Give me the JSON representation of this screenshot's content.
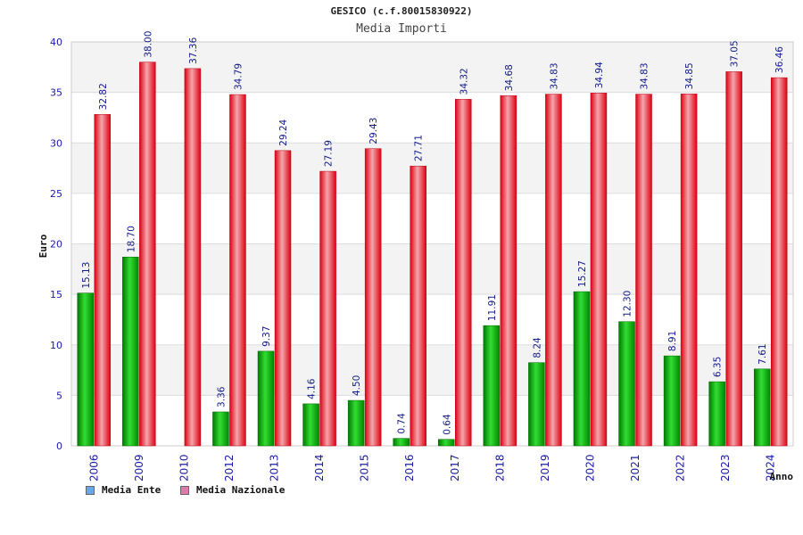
{
  "title": "GESICO (c.f.80015830922)",
  "subtitle": "Media Importi",
  "chart_data": {
    "type": "bar",
    "xlabel": "Anno",
    "ylabel": "Euro",
    "ylim": [
      0,
      40
    ],
    "yticks": [
      0,
      5,
      10,
      15,
      20,
      25,
      30,
      35,
      40
    ],
    "grid": true,
    "legend_position": "bottom-left",
    "categories": [
      "2006",
      "2009",
      "2010",
      "2012",
      "2013",
      "2014",
      "2015",
      "2016",
      "2017",
      "2018",
      "2019",
      "2020",
      "2021",
      "2022",
      "2023",
      "2024"
    ],
    "series": [
      {
        "name": "Media Ente",
        "color": "#00bb00",
        "legend_color": "#6aa7e6",
        "values": [
          15.13,
          18.7,
          null,
          3.36,
          9.37,
          4.16,
          4.5,
          0.74,
          0.64,
          11.91,
          8.24,
          15.27,
          12.3,
          8.91,
          6.35,
          7.61
        ],
        "labels": [
          "15.13",
          "18.70",
          "",
          "3.36",
          "9.37",
          "4.16",
          "4.50",
          "0.74",
          "0.64",
          "11.91",
          "8.24",
          "15.27",
          "12.30",
          "8.91",
          "6.35",
          "7.61"
        ]
      },
      {
        "name": "Media Nazionale",
        "color": "#ee1122",
        "legend_color": "#e07aa8",
        "values": [
          32.82,
          38.0,
          37.36,
          34.79,
          29.24,
          27.19,
          29.43,
          27.71,
          34.32,
          34.68,
          34.83,
          34.94,
          34.83,
          34.85,
          37.05,
          36.46
        ],
        "labels": [
          "32.82",
          "38.00",
          "37.36",
          "34.79",
          "29.24",
          "27.19",
          "29.43",
          "27.71",
          "34.32",
          "34.68",
          "34.83",
          "34.94",
          "34.83",
          "34.85",
          "37.05",
          "36.46"
        ]
      }
    ]
  }
}
